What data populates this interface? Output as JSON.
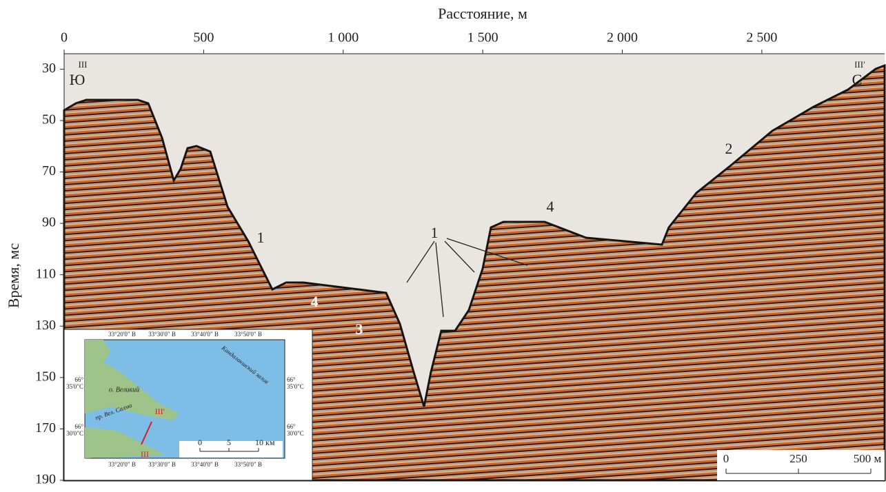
{
  "chart_data": {
    "type": "seismic-profile",
    "xlabel": "Расстояние, м",
    "ylabel": "Время, мс",
    "xlim": [
      0,
      2940
    ],
    "ylim": [
      24,
      190
    ],
    "y_inverted": true,
    "xticks": [
      0,
      500,
      {
        "value": 1000,
        "label": "1 000"
      },
      {
        "value": 1500,
        "label": "1 500"
      },
      {
        "value": 2000,
        "label": "2 000"
      },
      {
        "value": 2500,
        "label": "2 500"
      }
    ],
    "yticks": [
      30,
      50,
      70,
      90,
      110,
      130,
      150,
      170,
      190
    ],
    "annotations": [
      "III",
      "Ю",
      "III′",
      "С",
      "1",
      "1",
      "2",
      "3",
      "4",
      "4"
    ],
    "scale_bar": [
      "0",
      "250",
      "500 м"
    ]
  },
  "inset_map": {
    "lon_top": [
      "33°20'0\" В",
      "33°30'0\" В",
      "33°40'0\" В",
      "33°50'0\" В"
    ],
    "lon_bottom": [
      "33°20'0\" В",
      "33°30'0\" В",
      "33°40'0\" В",
      "33°50'0\" В"
    ],
    "lat_left": [
      "66°",
      "35'0\"С",
      "66°",
      "30'0\"С"
    ],
    "lat_right": [
      "66°",
      "35'0\"С",
      "66°",
      "30'0\"С"
    ],
    "places": [
      "Кандалакшский залив",
      "о. Великий",
      "пр. Вел. Салма",
      "III′",
      "III"
    ],
    "scale": [
      "0",
      "5",
      "10 км"
    ]
  }
}
